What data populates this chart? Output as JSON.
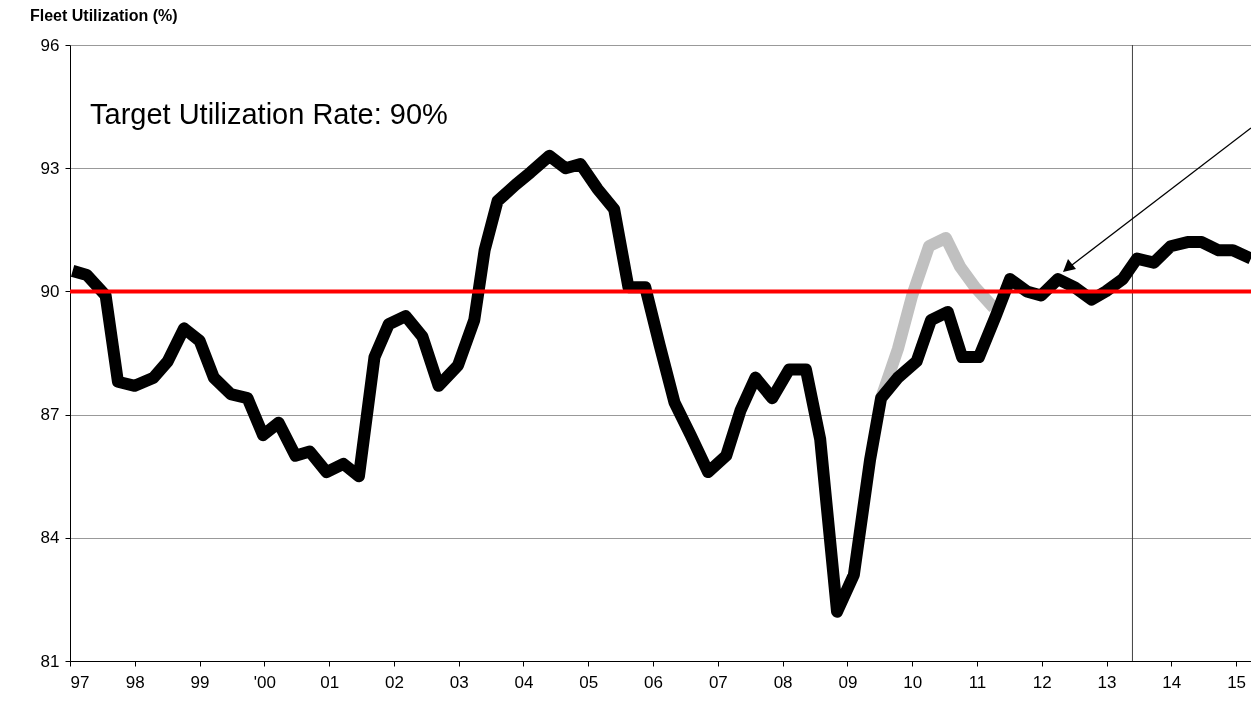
{
  "chart_data": {
    "type": "line",
    "title": "Fleet Utilization (%)",
    "annotations": [
      "Target Utilization Rate: 90%"
    ],
    "xlim": [
      1997,
      2015.23
    ],
    "xticks": [
      {
        "value": 1997,
        "label": "97"
      },
      {
        "value": 1998,
        "label": "98"
      },
      {
        "value": 1999,
        "label": "99"
      },
      {
        "value": 2000,
        "label": "'00"
      },
      {
        "value": 2001,
        "label": "01"
      },
      {
        "value": 2002,
        "label": "02"
      },
      {
        "value": 2003,
        "label": "03"
      },
      {
        "value": 2004,
        "label": "04"
      },
      {
        "value": 2005,
        "label": "05"
      },
      {
        "value": 2006,
        "label": "06"
      },
      {
        "value": 2007,
        "label": "07"
      },
      {
        "value": 2008,
        "label": "08"
      },
      {
        "value": 2009,
        "label": "09"
      },
      {
        "value": 2010,
        "label": "10"
      },
      {
        "value": 2011,
        "label": "11"
      },
      {
        "value": 2012,
        "label": "12"
      },
      {
        "value": 2013,
        "label": "13"
      },
      {
        "value": 2014,
        "label": "14"
      },
      {
        "value": 2015,
        "label": "15"
      }
    ],
    "ylim": [
      81,
      96
    ],
    "yticks": [
      81,
      84,
      87,
      90,
      93,
      96
    ],
    "grid": "y",
    "marker": "none",
    "line_style": "solid",
    "ref_lines": [
      {
        "axis": "y",
        "value": 90,
        "color": "#ff0000"
      },
      {
        "axis": "x",
        "value": 2013.4,
        "color": "#404040"
      }
    ],
    "series": [
      {
        "color": "#c0c0c0",
        "x": [
          2009.52,
          2009.78,
          2010.0,
          2010.26,
          2010.52,
          2010.74,
          2010.97,
          2011.26
        ],
        "values": [
          87.4,
          88.6,
          89.9,
          91.1,
          91.3,
          90.6,
          90.1,
          89.6
        ]
      },
      {
        "color": "#000000",
        "x": [
          1997.04,
          1997.26,
          1997.55,
          1997.74,
          1998.0,
          1998.29,
          1998.51,
          1998.76,
          1999.0,
          1999.22,
          1999.48,
          1999.74,
          1999.98,
          2000.22,
          2000.48,
          2000.7,
          2000.96,
          2001.22,
          2001.46,
          2001.7,
          2001.92,
          2002.18,
          2002.44,
          2002.69,
          2002.99,
          2003.24,
          2003.4,
          2003.6,
          2003.88,
          2004.11,
          2004.4,
          2004.65,
          2004.88,
          2005.14,
          2005.4,
          2005.62,
          2005.88,
          2006.1,
          2006.33,
          2006.58,
          2006.85,
          2007.13,
          2007.35,
          2007.58,
          2007.84,
          2008.1,
          2008.36,
          2008.58,
          2008.84,
          2009.1,
          2009.35,
          2009.52,
          2009.78,
          2010.07,
          2010.29,
          2010.55,
          2010.77,
          2011.03,
          2011.29,
          2011.51,
          2011.77,
          2011.99,
          2012.25,
          2012.51,
          2012.77,
          2012.99,
          2013.25,
          2013.47,
          2013.73,
          2013.99,
          2014.25,
          2014.47,
          2014.73,
          2014.95,
          2015.23
        ],
        "values": [
          90.5,
          90.4,
          89.9,
          87.8,
          87.7,
          87.9,
          88.3,
          89.1,
          88.8,
          87.9,
          87.5,
          87.4,
          86.5,
          86.8,
          86.0,
          86.1,
          85.6,
          85.8,
          85.5,
          88.4,
          89.2,
          89.4,
          88.9,
          87.7,
          88.2,
          89.3,
          91.0,
          92.2,
          92.6,
          92.9,
          93.3,
          93.0,
          93.1,
          92.5,
          92.0,
          90.1,
          90.1,
          88.7,
          87.3,
          86.5,
          85.6,
          86.0,
          87.1,
          87.9,
          87.4,
          88.1,
          88.1,
          86.4,
          82.2,
          83.1,
          85.9,
          87.4,
          87.9,
          88.3,
          89.3,
          89.5,
          88.4,
          88.4,
          89.4,
          90.3,
          90.0,
          89.9,
          90.3,
          90.1,
          89.8,
          90.0,
          90.3,
          90.8,
          90.7,
          91.1,
          91.2,
          91.2,
          91.0,
          91.0,
          90.8
        ]
      }
    ]
  }
}
